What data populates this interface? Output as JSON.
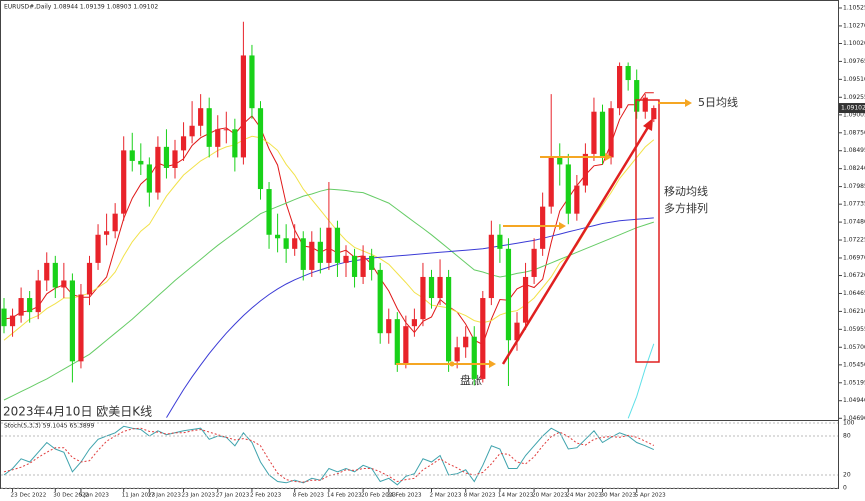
{
  "chart_data": [
    {
      "type": "candlestick",
      "header": "EURUSD#,Daily  1.08944 1.09139 1.08903 1.09102",
      "categories": [
        null,
        "23 Dec 2022",
        null,
        null,
        null,
        null,
        "30 Dec 2022",
        null,
        null,
        "5 Jan 2023",
        null,
        null,
        null,
        null,
        "11 Jan 2023",
        null,
        null,
        "17 Jan 2023",
        null,
        null,
        null,
        "23 Jan 2023",
        null,
        null,
        null,
        "27 Jan 2023",
        null,
        null,
        null,
        "2 Feb 2023",
        null,
        null,
        null,
        null,
        "8 Feb 2023",
        null,
        null,
        null,
        "14 Feb 2023",
        null,
        null,
        null,
        "20 Feb 2023",
        null,
        null,
        "24 Feb 2023",
        null,
        null,
        null,
        null,
        "2 Mar 2023",
        null,
        null,
        null,
        "8 Mar 2023",
        null,
        null,
        null,
        "14 Mar 2023",
        null,
        null,
        null,
        "20 Mar 2023",
        null,
        null,
        null,
        "24 Mar 2023",
        null,
        null,
        null,
        "30 Mar 2023",
        null,
        null,
        null,
        "5 Apr 2023",
        null,
        null
      ],
      "open": [
        1.0625,
        1.06,
        1.0615,
        1.064,
        1.062,
        1.0665,
        1.069,
        1.0655,
        1.0665,
        1.055,
        1.0645,
        1.069,
        1.073,
        1.0735,
        1.076,
        1.085,
        1.0835,
        1.083,
        1.079,
        1.0855,
        1.0825,
        1.085,
        1.087,
        1.0885,
        1.091,
        1.0855,
        1.088,
        1.088,
        1.084,
        1.0985,
        1.091,
        1.0795,
        1.073,
        1.0725,
        1.071,
        1.0725,
        1.068,
        1.072,
        1.069,
        1.074,
        1.069,
        1.07,
        1.067,
        1.07,
        1.068,
        1.059,
        1.061,
        1.0545,
        1.06,
        1.061,
        1.067,
        1.064,
        1.067,
        1.055,
        1.057,
        1.0585,
        1.0525,
        1.064,
        1.073,
        1.071,
        1.058,
        1.0605,
        1.067,
        1.071,
        1.077,
        1.084,
        1.083,
        1.076,
        1.08,
        1.0845,
        1.0905,
        1.084,
        1.091,
        1.097,
        1.095,
        1.0905,
        1.08944
      ],
      "high": [
        1.064,
        1.0625,
        1.0655,
        1.065,
        1.068,
        1.0705,
        1.07,
        1.069,
        1.0675,
        1.066,
        1.07,
        1.0745,
        1.076,
        1.0775,
        1.087,
        1.0875,
        1.086,
        1.084,
        1.087,
        1.088,
        1.0865,
        1.089,
        1.092,
        1.093,
        1.0925,
        1.09,
        1.0905,
        1.0895,
        1.1033,
        1.1,
        1.092,
        1.0805,
        1.076,
        1.0745,
        1.0745,
        1.0735,
        1.0735,
        1.074,
        1.0805,
        1.075,
        1.0715,
        1.071,
        1.0715,
        1.071,
        1.069,
        1.0625,
        1.062,
        1.0615,
        1.0625,
        1.069,
        1.068,
        1.0695,
        1.068,
        1.0585,
        1.06,
        1.06,
        1.065,
        1.075,
        1.0745,
        1.0725,
        1.062,
        1.069,
        1.0725,
        1.079,
        1.093,
        1.086,
        1.0845,
        1.0815,
        1.086,
        1.0925,
        1.0915,
        1.092,
        1.0975,
        1.0975,
        1.0965,
        1.093,
        1.09139
      ],
      "low": [
        1.059,
        1.0585,
        1.0605,
        1.0605,
        1.061,
        1.065,
        1.064,
        1.064,
        1.052,
        1.054,
        1.063,
        1.068,
        1.0715,
        1.0725,
        1.075,
        1.082,
        1.0815,
        1.077,
        1.078,
        1.081,
        1.081,
        1.0835,
        1.086,
        1.087,
        1.084,
        1.084,
        1.086,
        1.082,
        1.083,
        1.0895,
        1.078,
        1.071,
        1.0705,
        1.069,
        1.07,
        1.0665,
        1.067,
        1.0675,
        1.068,
        1.067,
        1.067,
        1.0655,
        1.066,
        1.0665,
        1.0575,
        1.0575,
        1.0535,
        1.054,
        1.0585,
        1.06,
        1.0625,
        1.063,
        1.0535,
        1.054,
        1.0555,
        1.0516,
        1.052,
        1.063,
        1.069,
        1.0515,
        1.0565,
        1.0595,
        1.066,
        1.07,
        1.076,
        1.08,
        1.0745,
        1.075,
        1.079,
        1.0835,
        1.083,
        1.083,
        1.09,
        1.0935,
        1.0895,
        1.0895,
        1.08903
      ],
      "close": [
        1.06,
        1.0615,
        1.064,
        1.062,
        1.0665,
        1.069,
        1.0655,
        1.0665,
        1.055,
        1.0645,
        1.069,
        1.073,
        1.0735,
        1.076,
        1.085,
        1.0835,
        1.083,
        1.079,
        1.0855,
        1.0825,
        1.085,
        1.087,
        1.0885,
        1.091,
        1.0855,
        1.088,
        1.088,
        1.084,
        1.0985,
        1.091,
        1.0795,
        1.073,
        1.0725,
        1.071,
        1.0725,
        1.068,
        1.072,
        1.069,
        1.074,
        1.069,
        1.07,
        1.067,
        1.07,
        1.068,
        1.059,
        1.061,
        1.0545,
        1.06,
        1.061,
        1.067,
        1.064,
        1.067,
        1.055,
        1.057,
        1.0585,
        1.0525,
        1.064,
        1.073,
        1.071,
        1.058,
        1.0605,
        1.067,
        1.071,
        1.077,
        1.084,
        1.083,
        1.076,
        1.08,
        1.0845,
        1.0905,
        1.084,
        1.091,
        1.097,
        1.095,
        1.0905,
        1.0925,
        1.09102
      ],
      "up_color": "#e8232a",
      "down_color": "#19d119",
      "series": [
        {
          "color": "#e01818",
          "values": [
            1.061,
            1.0612,
            1.062,
            1.0622,
            1.0628,
            1.0646,
            1.0654,
            1.0659,
            1.0645,
            1.0641,
            1.0641,
            1.0656,
            1.067,
            1.0712,
            1.0753,
            1.0782,
            1.0802,
            1.0813,
            1.0832,
            1.0827,
            1.083,
            1.0838,
            1.0857,
            1.0868,
            1.0874,
            1.088,
            1.0882,
            1.0873,
            1.0888,
            1.0899,
            1.0882,
            1.0852,
            1.0829,
            1.0774,
            1.0737,
            1.0714,
            1.0712,
            1.0705,
            1.0711,
            1.0704,
            1.0708,
            1.0698,
            1.07,
            1.0688,
            1.0668,
            1.065,
            1.0625,
            1.0605,
            1.0591,
            1.0607,
            1.0613,
            1.0638,
            1.0628,
            1.062,
            1.0603,
            1.058,
            1.0574,
            1.061,
            1.0638,
            1.0637,
            1.0653,
            1.0659,
            1.0655,
            1.0667,
            1.0719,
            1.0764,
            1.0782,
            1.08,
            1.0815,
            1.0828,
            1.083,
            1.086,
            1.0894,
            1.0915,
            1.0915,
            1.0932,
            1.0932
          ]
        },
        {
          "color": "#f2e24a",
          "values": [
            1.058,
            1.059,
            1.06,
            1.061,
            1.0615,
            1.0625,
            1.0632,
            1.064,
            1.064,
            1.0643,
            1.0647,
            1.0655,
            1.0663,
            1.0677,
            1.07,
            1.072,
            1.0735,
            1.0745,
            1.0765,
            1.0785,
            1.08,
            1.0815,
            1.0825,
            1.0835,
            1.0842,
            1.085,
            1.0855,
            1.0858,
            1.0865,
            1.087,
            1.0868,
            1.086,
            1.085,
            1.083,
            1.0815,
            1.0795,
            1.078,
            1.0765,
            1.075,
            1.0735,
            1.0722,
            1.0712,
            1.0707,
            1.0702,
            1.0696,
            1.0688,
            1.0675,
            1.0662,
            1.0648,
            1.064,
            1.063,
            1.0628,
            1.0626,
            1.062,
            1.0615,
            1.0608,
            1.0605,
            1.0608,
            1.0616,
            1.062,
            1.0622,
            1.063,
            1.064,
            1.0655,
            1.067,
            1.069,
            1.07,
            1.0715,
            1.0735,
            1.0755,
            1.0772,
            1.079,
            1.081,
            1.0825,
            1.084,
            1.0855,
            1.0865
          ]
        },
        {
          "color": "#66cc66",
          "values": [
            1.0495,
            1.0501,
            1.0507,
            1.0513,
            1.0519,
            1.0525,
            1.0532,
            1.0539,
            1.0546,
            1.0553,
            1.056,
            1.057,
            1.058,
            1.059,
            1.06,
            1.061,
            1.0621,
            1.0632,
            1.0643,
            1.0654,
            1.0665,
            1.0675,
            1.0685,
            1.0695,
            1.0705,
            1.0715,
            1.0724,
            1.0733,
            1.0742,
            1.0751,
            1.076,
            1.0765,
            1.077,
            1.0775,
            1.078,
            1.0785,
            1.0788,
            1.0792,
            1.0795,
            1.0794,
            1.0793,
            1.0791,
            1.079,
            1.0785,
            1.078,
            1.0775,
            1.0766,
            1.0757,
            1.0748,
            1.0739,
            1.073,
            1.072,
            1.071,
            1.07,
            1.069,
            1.068,
            1.0677,
            1.0673,
            1.067,
            1.0672,
            1.0675,
            1.0677,
            1.068,
            1.0685,
            1.069,
            1.0695,
            1.07,
            1.0705,
            1.071,
            1.0715,
            1.072,
            1.0725,
            1.073,
            1.0735,
            1.074,
            1.0744,
            1.0748
          ]
        },
        {
          "color": "#3b3bd6",
          "values": [
            null,
            null,
            null,
            null,
            null,
            null,
            null,
            null,
            null,
            null,
            null,
            null,
            null,
            null,
            null,
            null,
            null,
            null,
            null,
            1.047,
            1.049,
            1.051,
            1.0528,
            1.0545,
            1.0561,
            1.0576,
            1.059,
            1.0603,
            1.0615,
            1.0626,
            1.0636,
            1.0645,
            1.0653,
            1.066,
            1.0666,
            1.0671,
            1.0676,
            1.068,
            1.0684,
            1.0688,
            1.0691,
            1.0693,
            1.0695,
            1.0697,
            1.0698,
            1.0699,
            1.07,
            1.0701,
            1.0702,
            1.0703,
            1.0704,
            1.0705,
            1.0706,
            1.0707,
            1.0708,
            1.0709,
            1.071,
            1.0712,
            1.0714,
            1.0716,
            1.0718,
            1.072,
            1.0722,
            1.0725,
            1.0728,
            1.0731,
            1.0734,
            1.0737,
            1.074,
            1.0743,
            1.0746,
            1.0748,
            1.075,
            1.0751,
            1.0752,
            1.0753,
            1.0754
          ]
        },
        {
          "color": "#5fe0e8",
          "values": [
            null,
            null,
            null,
            null,
            null,
            null,
            null,
            null,
            null,
            null,
            null,
            null,
            null,
            null,
            null,
            null,
            null,
            null,
            null,
            null,
            null,
            null,
            null,
            null,
            null,
            null,
            null,
            null,
            null,
            null,
            null,
            null,
            null,
            null,
            null,
            null,
            null,
            null,
            null,
            null,
            null,
            null,
            null,
            null,
            null,
            null,
            null,
            null,
            null,
            null,
            null,
            null,
            null,
            null,
            null,
            null,
            null,
            null,
            null,
            null,
            null,
            null,
            null,
            null,
            null,
            null,
            null,
            null,
            null,
            null,
            null,
            null,
            null,
            1.0469,
            1.05,
            1.054,
            1.0575
          ]
        }
      ],
      "ylim": [
        1.0468,
        1.1061
      ],
      "yticks": [
        1.10525,
        {
          "value": 1.1027,
          "label": "1.10270"
        },
        {
          "value": 1.1002,
          "label": "1.10020"
        },
        1.09765,
        {
          "value": 1.0951,
          "label": "1.09510"
        },
        1.09255,
        1.09005,
        {
          "value": 1.0875,
          "label": "1.08750"
        },
        1.08495,
        {
          "value": 1.0824,
          "label": "1.08240"
        },
        1.07985,
        1.07735,
        {
          "value": 1.0748,
          "label": "1.07480"
        },
        1.07225,
        {
          "value": 1.0697,
          "label": "1.06970"
        },
        {
          "value": 1.0672,
          "label": "1.06720"
        },
        1.06465,
        {
          "value": 1.0621,
          "label": "1.06210"
        },
        1.05955,
        {
          "value": 1.057,
          "label": "1.05700"
        },
        {
          "value": 1.0545,
          "label": "1.05450"
        },
        1.05195,
        {
          "value": 1.0494,
          "label": "1.04940"
        },
        {
          "value": 1.0469,
          "label": "1.04690"
        }
      ],
      "current_price": 1.09102,
      "annotations": {
        "ma5": "5日均线",
        "ma_line1": "移动均线",
        "ma_line2": "多方排列",
        "consolidation": "盘涨",
        "caption": "2023年4月10日 欧美日K线"
      }
    },
    {
      "type": "line",
      "title": "Stoch(5,3,3) 59.1045 65.3899",
      "series": [
        {
          "color": "#3fa3ad",
          "values": [
            20,
            30,
            45,
            40,
            55,
            70,
            60,
            55,
            25,
            40,
            60,
            75,
            80,
            85,
            95,
            92,
            90,
            80,
            88,
            82,
            85,
            88,
            90,
            92,
            75,
            80,
            78,
            65,
            85,
            70,
            40,
            20,
            10,
            8,
            12,
            8,
            15,
            12,
            30,
            25,
            30,
            25,
            35,
            30,
            10,
            15,
            5,
            18,
            22,
            45,
            40,
            50,
            20,
            22,
            28,
            10,
            35,
            65,
            60,
            30,
            30,
            50,
            65,
            80,
            92,
            85,
            60,
            62,
            75,
            88,
            70,
            78,
            85,
            80,
            70,
            65,
            59.1045
          ]
        },
        {
          "color": "#e03c3c",
          "dash": true,
          "values": [
            25,
            28,
            32,
            38,
            47,
            55,
            62,
            62,
            47,
            40,
            42,
            58,
            72,
            80,
            87,
            91,
            92,
            87,
            86,
            83,
            85,
            85,
            88,
            90,
            86,
            82,
            78,
            74,
            76,
            73,
            65,
            43,
            23,
            13,
            10,
            9,
            12,
            12,
            19,
            22,
            28,
            27,
            30,
            30,
            25,
            18,
            10,
            13,
            15,
            28,
            36,
            45,
            37,
            31,
            23,
            20,
            24,
            37,
            53,
            52,
            40,
            37,
            48,
            65,
            79,
            86,
            79,
            69,
            66,
            75,
            78,
            79,
            78,
            81,
            78,
            72,
            65.3899
          ]
        }
      ],
      "ylim": [
        0,
        100
      ],
      "yticks": [
        100,
        80,
        20,
        0
      ]
    }
  ]
}
